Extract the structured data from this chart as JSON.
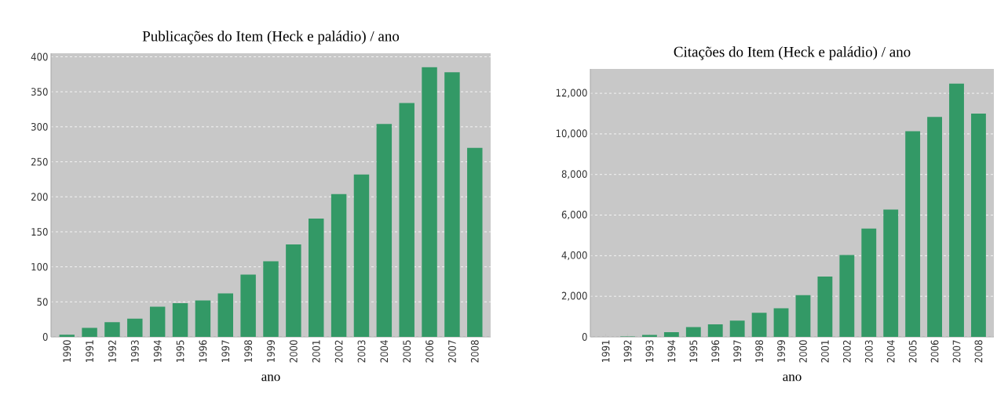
{
  "chart_data": [
    {
      "type": "bar",
      "title": "Publicações do Item (Heck e paládio) / ano",
      "xlabel": "ano",
      "categories": [
        "1990",
        "1991",
        "1992",
        "1993",
        "1994",
        "1995",
        "1996",
        "1997",
        "1998",
        "1999",
        "2000",
        "2001",
        "2002",
        "2003",
        "2004",
        "2005",
        "2006",
        "2007",
        "2008"
      ],
      "values": [
        3,
        13,
        21,
        26,
        43,
        48,
        52,
        62,
        89,
        108,
        132,
        169,
        204,
        232,
        304,
        334,
        385,
        378,
        270
      ],
      "color": "#339966",
      "ylim": [
        0,
        405
      ],
      "yticks": [
        0,
        50,
        100,
        150,
        200,
        250,
        300,
        350,
        400
      ],
      "grid": "y"
    },
    {
      "type": "bar",
      "title": "Citações do Item (Heck e paládio) / ano",
      "xlabel": "ano",
      "categories": [
        "1991",
        "1992",
        "1993",
        "1994",
        "1995",
        "1996",
        "1997",
        "1998",
        "1999",
        "2000",
        "2001",
        "2002",
        "2003",
        "2004",
        "2005",
        "2006",
        "2007",
        "2008"
      ],
      "values": [
        null,
        20,
        100,
        230,
        480,
        620,
        800,
        1190,
        1410,
        2060,
        2970,
        4030,
        5340,
        6270,
        10130,
        10840,
        12490,
        11000
      ],
      "color": "#339966",
      "ylim": [
        0,
        13200
      ],
      "yticks": [
        0,
        {
          "value": 2000,
          "label": "2,000"
        },
        {
          "value": 4000,
          "label": "4,000"
        },
        {
          "value": 6000,
          "label": "6,000"
        },
        {
          "value": 8000,
          "label": "8,000"
        },
        {
          "value": 10000,
          "label": "10,000"
        },
        {
          "value": 12000,
          "label": "12,000"
        }
      ],
      "grid": "y"
    }
  ]
}
